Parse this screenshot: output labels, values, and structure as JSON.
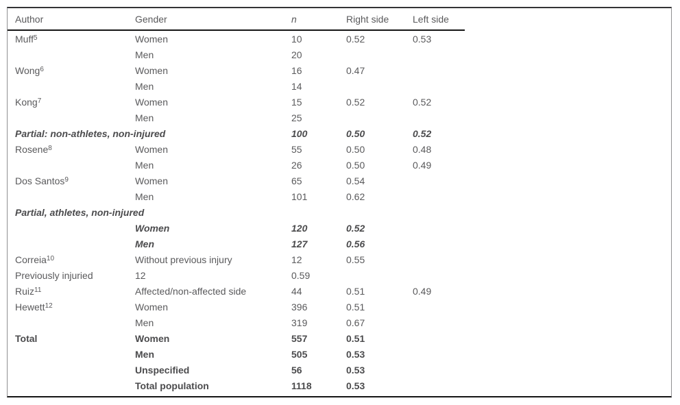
{
  "colors": {
    "text": "#59595b",
    "bold_text": "#4b4b4d",
    "rule": "#141414",
    "frame_side": "#8f8f91",
    "background": "#ffffff"
  },
  "table": {
    "headers": [
      {
        "label": "Author",
        "italic": false
      },
      {
        "label": "Gender",
        "italic": false
      },
      {
        "label": "n",
        "italic": true
      },
      {
        "label": "Right side",
        "italic": false
      },
      {
        "label": "Left side",
        "italic": false
      }
    ],
    "rows": [
      {
        "author": "Muff",
        "ref": "5",
        "gender": "Women",
        "n": "10",
        "right_side": "0.52",
        "left_side": "0.53",
        "style": "normal",
        "span2": false
      },
      {
        "author": "",
        "ref": "",
        "gender": "Men",
        "n": "20",
        "right_side": "",
        "left_side": "",
        "style": "normal",
        "span2": false
      },
      {
        "author": "Wong",
        "ref": "6",
        "gender": "Women",
        "n": "16",
        "right_side": "0.47",
        "left_side": "",
        "style": "normal",
        "span2": false
      },
      {
        "author": "",
        "ref": "",
        "gender": "Men",
        "n": "14",
        "right_side": "",
        "left_side": "",
        "style": "normal",
        "span2": false
      },
      {
        "author": "Kong",
        "ref": "7",
        "gender": "Women",
        "n": "15",
        "right_side": "0.52",
        "left_side": "0.52",
        "style": "normal",
        "span2": false
      },
      {
        "author": "",
        "ref": "",
        "gender": "Men",
        "n": "25",
        "right_side": "",
        "left_side": "",
        "style": "normal",
        "span2": false
      },
      {
        "author": "Partial: non-athletes, non-injured",
        "ref": "",
        "gender": "",
        "n": "100",
        "right_side": "0.50",
        "left_side": "0.52",
        "style": "bold-italic",
        "span2": true
      },
      {
        "author": "Rosene",
        "ref": "8",
        "gender": "Women",
        "n": "55",
        "right_side": "0.50",
        "left_side": "0.48",
        "style": "normal",
        "span2": false
      },
      {
        "author": "",
        "ref": "",
        "gender": "Men",
        "n": "26",
        "right_side": "0.50",
        "left_side": "0.49",
        "style": "normal",
        "span2": false
      },
      {
        "author": "Dos Santos",
        "ref": "9",
        "gender": "Women",
        "n": "65",
        "right_side": "0.54",
        "left_side": "",
        "style": "normal",
        "span2": false
      },
      {
        "author": "",
        "ref": "",
        "gender": "Men",
        "n": "101",
        "right_side": "0.62",
        "left_side": "",
        "style": "normal",
        "span2": false
      },
      {
        "author": "Partial, athletes, non-injured",
        "ref": "",
        "gender": "",
        "n": "",
        "right_side": "",
        "left_side": "",
        "style": "bold-italic",
        "span2": true
      },
      {
        "author": "",
        "ref": "",
        "gender": "Women",
        "n": "120",
        "right_side": "0.52",
        "left_side": "",
        "style": "bold-italic",
        "span2": false
      },
      {
        "author": "",
        "ref": "",
        "gender": "Men",
        "n": "127",
        "right_side": "0.56",
        "left_side": "",
        "style": "bold-italic",
        "span2": false
      },
      {
        "author": "Correia",
        "ref": "10",
        "gender": "Without previous injury",
        "n": "12",
        "right_side": "0.55",
        "left_side": "",
        "style": "normal",
        "span2": false
      },
      {
        "author": "Previously injuried",
        "ref": "",
        "gender": "12",
        "n": "0.59",
        "right_side": "",
        "left_side": "",
        "style": "normal",
        "span2": false
      },
      {
        "author": "Ruiz",
        "ref": "11",
        "gender": "Affected/non-affected side",
        "n": "44",
        "right_side": "0.51",
        "left_side": "0.49",
        "style": "normal",
        "span2": false
      },
      {
        "author": "Hewett",
        "ref": "12",
        "gender": "Women",
        "n": "396",
        "right_side": "0.51",
        "left_side": "",
        "style": "normal",
        "span2": false
      },
      {
        "author": "",
        "ref": "",
        "gender": "Men",
        "n": "319",
        "right_side": "0.67",
        "left_side": "",
        "style": "normal",
        "span2": false
      },
      {
        "author": "Total",
        "ref": "",
        "gender": "Women",
        "n": "557",
        "right_side": "0.51",
        "left_side": "",
        "style": "bold",
        "span2": false
      },
      {
        "author": "",
        "ref": "",
        "gender": "Men",
        "n": "505",
        "right_side": "0.53",
        "left_side": "",
        "style": "bold",
        "span2": false
      },
      {
        "author": "",
        "ref": "",
        "gender": "Unspecified",
        "n": "56",
        "right_side": "0.53",
        "left_side": "",
        "style": "bold",
        "span2": false
      },
      {
        "author": "",
        "ref": "",
        "gender": "Total population",
        "n": "1118",
        "right_side": "0.53",
        "left_side": "",
        "style": "bold",
        "span2": false
      }
    ]
  }
}
